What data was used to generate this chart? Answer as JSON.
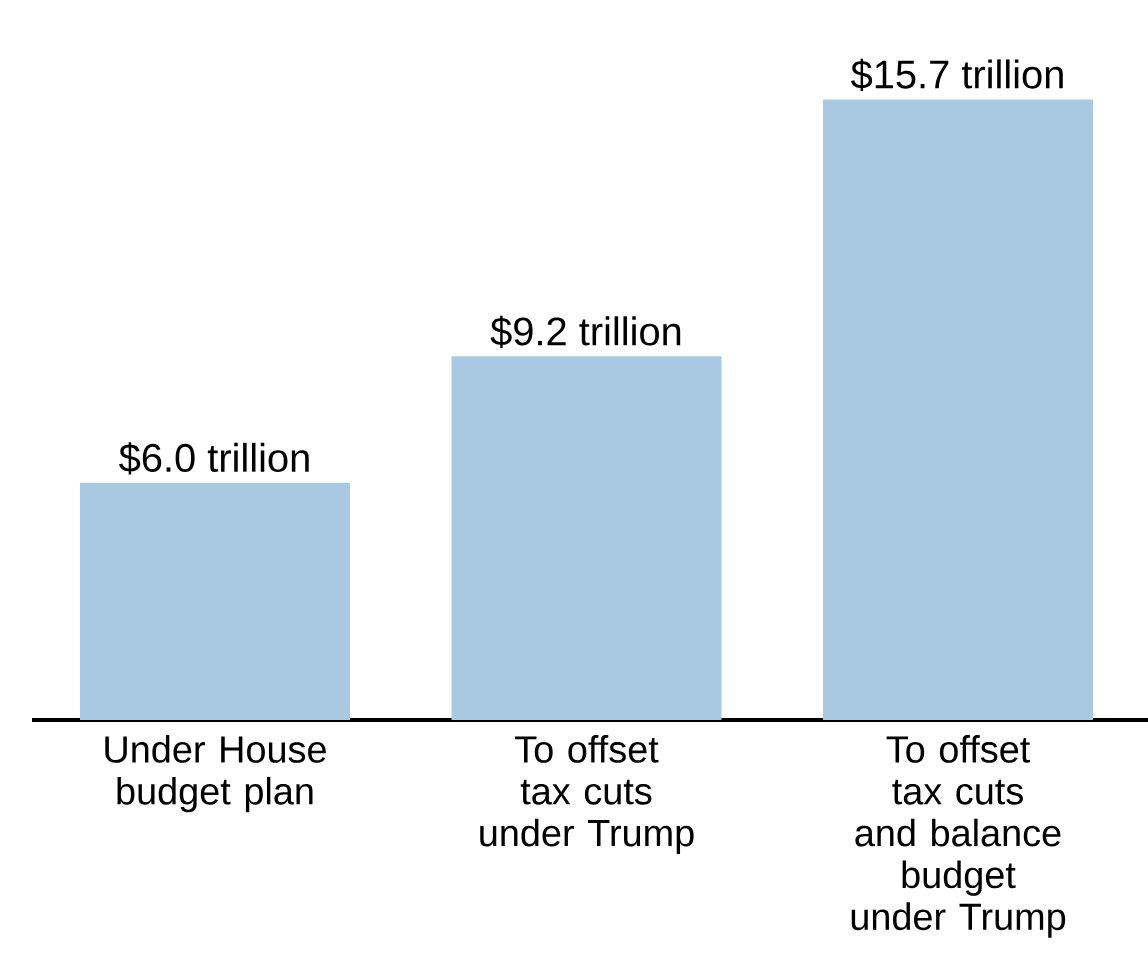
{
  "chart_data": {
    "type": "bar",
    "categories": [
      "Under House budget plan",
      "To offset tax cuts under Trump",
      "To offset tax cuts and balance budget under Trump"
    ],
    "values": [
      6.0,
      9.2,
      15.7
    ],
    "value_labels": [
      "$6.0 trillion",
      "$9.2 trillion",
      "$15.7 trillion"
    ],
    "color": "#a9c8e1"
  }
}
